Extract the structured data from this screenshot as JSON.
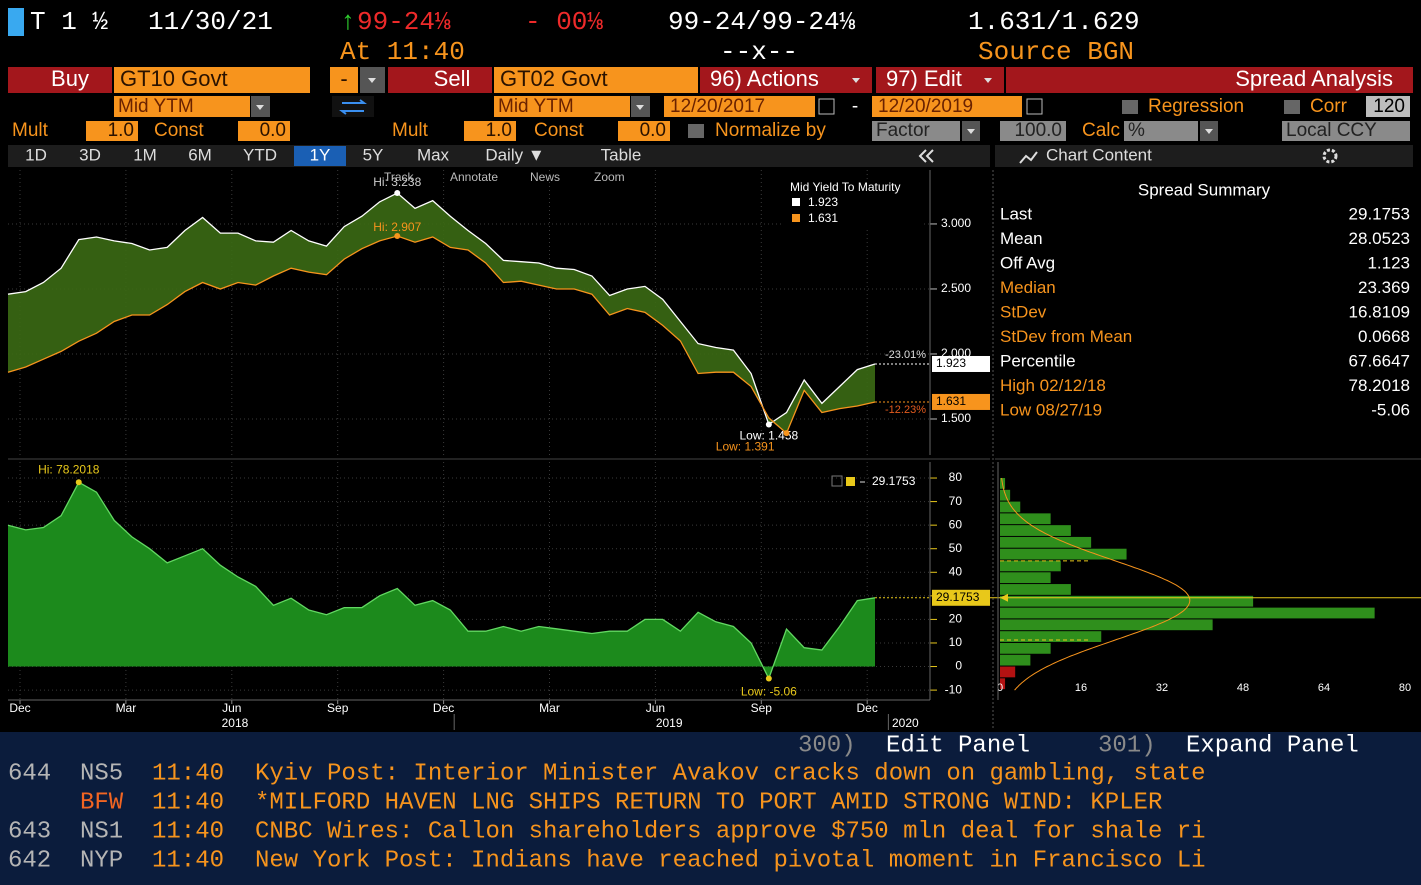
{
  "header": {
    "security": "T 1 ½",
    "maturity": "11/30/21",
    "price_arrow": "↑",
    "price": "99-24⅛",
    "change": "- 00⅛",
    "bid_ask": "99-24/99-24⅛",
    "yields": "1.631/1.629",
    "time": "At 11:40",
    "spread_mark": "--x--",
    "source": "Source BGN"
  },
  "toolbar": {
    "buy_label": "Buy",
    "buy_security": "GT10 Govt",
    "dash": "-",
    "sell_label": "Sell",
    "sell_security": "GT02 Govt",
    "actions": "96) Actions",
    "edit": "97) Edit",
    "title": "Spread Analysis",
    "buy_field": "Mid YTM",
    "sell_field": "Mid YTM",
    "start_date": "12/20/2017",
    "date_sep": "-",
    "end_date": "12/20/2019",
    "regression": "Regression",
    "corr": "Corr",
    "corr_window": "120",
    "buy_mult_label": "Mult",
    "buy_mult": "1.0",
    "buy_const_label": "Const",
    "buy_const": "0.0",
    "sell_mult_label": "Mult",
    "sell_mult": "1.0",
    "sell_const_label": "Const",
    "sell_const": "0.0",
    "normalize": "Normalize by",
    "factor": "Factor",
    "factor_value": "100.0",
    "calc": "Calc",
    "calc_value": "%",
    "currency": "Local CCY",
    "tabs": [
      "1D",
      "3D",
      "1M",
      "6M",
      "YTD",
      "1Y",
      "5Y",
      "Max"
    ],
    "active_tab": 5,
    "frequency": "Daily ▼",
    "table": "Table",
    "chart_content": "Chart Content",
    "tools": [
      "Track",
      "Annotate",
      "News",
      "Zoom"
    ]
  },
  "chart_data": [
    {
      "type": "area",
      "legend_title": "Mid Yield To Maturity",
      "legend_position": "upper right",
      "grid": true,
      "fill_color": "#3b6a14",
      "ylim": [
        1.223,
        3.415
      ],
      "yticks": [
        {
          "value": 1.5,
          "label": "1.500"
        },
        {
          "value": 2,
          "label": "2.000"
        },
        {
          "value": 2.5,
          "label": "2.500"
        },
        {
          "value": 3,
          "label": "3.000"
        }
      ],
      "series": [
        {
          "color": "#ffffff",
          "hi_label": "Hi: 3.238",
          "low_label": "Low: 1.458",
          "change_label": "-23.01%",
          "values": [
            2.46,
            2.48,
            2.55,
            2.66,
            2.88,
            2.9,
            2.87,
            2.85,
            2.8,
            2.82,
            2.95,
            3.05,
            2.93,
            2.93,
            2.87,
            2.86,
            2.95,
            2.87,
            2.83,
            2.98,
            3.06,
            3.17,
            3.238,
            3.12,
            3.18,
            3.06,
            2.95,
            2.85,
            2.72,
            2.71,
            2.7,
            2.66,
            2.65,
            2.6,
            2.45,
            2.5,
            2.52,
            2.42,
            2.25,
            2.08,
            2.05,
            2.03,
            1.85,
            1.458,
            1.55,
            1.8,
            1.62,
            1.75,
            1.88,
            1.923
          ]
        },
        {
          "color": "#f7941d",
          "hi_label": "Hi: 2.907",
          "low_label": "Low: 1.391",
          "change_label": "-12.23%",
          "values": [
            1.86,
            1.9,
            1.96,
            2.02,
            2.098,
            2.16,
            2.25,
            2.3,
            2.3,
            2.38,
            2.48,
            2.55,
            2.5,
            2.55,
            2.53,
            2.6,
            2.66,
            2.63,
            2.61,
            2.73,
            2.81,
            2.87,
            2.907,
            2.86,
            2.9,
            2.82,
            2.8,
            2.7,
            2.55,
            2.56,
            2.53,
            2.5,
            2.5,
            2.46,
            2.3,
            2.35,
            2.32,
            2.22,
            2.1,
            1.85,
            1.86,
            1.86,
            1.75,
            1.5086,
            1.391,
            1.72,
            1.55,
            1.58,
            1.6,
            1.631
          ]
        }
      ]
    },
    {
      "type": "area",
      "grid": true,
      "legend_position": "upper right",
      "ylim": [
        -14.2,
        86.8
      ],
      "yticks": [
        -10,
        0,
        10,
        20,
        30,
        40,
        50,
        60,
        70,
        80
      ],
      "xtick_labels": [
        "Dec",
        "Mar",
        "Jun",
        "Sep",
        "Dec",
        "Mar",
        "Jun",
        "Sep",
        "Dec"
      ],
      "year_labels": [
        "2018",
        "2019",
        "2020"
      ],
      "series": [
        {
          "color": "#1c8a1c",
          "line_color": "#62d862",
          "legend_color": "#e8c81a",
          "hi_label": "Hi: 78.2018",
          "low_label": "Low: -5.06",
          "values": [
            60,
            58,
            59,
            64,
            78.2018,
            74,
            62,
            55,
            50,
            44,
            47,
            50,
            43,
            38,
            34,
            26,
            29,
            24,
            22,
            25,
            25,
            30,
            33.1,
            26,
            28,
            24,
            15,
            15,
            17,
            15,
            17,
            16,
            15,
            14,
            15,
            15,
            20,
            20,
            15,
            23,
            19,
            17,
            10,
            -5.06,
            15.9,
            8,
            7,
            17,
            28,
            29.1753
          ]
        }
      ]
    },
    {
      "type": "histogram",
      "orientation": "horizontal",
      "color": "#2f8f1c",
      "negative_color": "#b31212",
      "curve_color": "#f7941d",
      "marker_color": "#e8c81a",
      "bins": [
        -10,
        -5,
        0,
        5,
        10,
        15,
        20,
        25,
        30,
        35,
        40,
        45,
        50,
        55,
        60,
        65,
        70,
        75,
        80
      ],
      "values": [
        1,
        3,
        6,
        10,
        20,
        42,
        74,
        50,
        14,
        10,
        12,
        25,
        18,
        14,
        10,
        4,
        2,
        1
      ],
      "xlim": [
        0,
        80
      ],
      "xticks": [
        0,
        16,
        32,
        48,
        64,
        80
      ],
      "ylim": [
        -14.2,
        86.8
      ]
    }
  ],
  "summary": {
    "title": "Spread Summary",
    "rows": [
      {
        "label": "Last",
        "value": 29.1753,
        "highlight": false
      },
      {
        "label": "Mean",
        "value": 28.0523,
        "highlight": false
      },
      {
        "label": "Off Avg",
        "value": 1.123,
        "highlight": false
      },
      {
        "label": "Median",
        "value": 23.369,
        "highlight": true
      },
      {
        "label": "StDev",
        "value": 16.8109,
        "highlight": true
      },
      {
        "label": "StDev from Mean",
        "value": 0.0668,
        "highlight": true
      },
      {
        "label": "Percentile",
        "value": 67.6647,
        "highlight": false
      },
      {
        "label": "High 02/12/18",
        "value": 78.2018,
        "highlight": true
      },
      {
        "label": "Low 08/27/19",
        "value": -5.06,
        "highlight": true
      }
    ]
  },
  "news": {
    "edit_panel_key": "300)",
    "edit_panel": "Edit Panel",
    "expand_panel_key": "301)",
    "expand_panel": "Expand Panel",
    "items": [
      {
        "id": "644",
        "source": "NS5",
        "highlight": false,
        "time": "11:40",
        "headline": "Kyiv Post: Interior Minister Avakov cracks down on gambling, state"
      },
      {
        "id": null,
        "source": "BFW",
        "highlight": true,
        "time": "11:40",
        "headline": "*MILFORD HAVEN LNG SHIPS RETURN TO PORT AMID STRONG WIND: KPLER"
      },
      {
        "id": "643",
        "source": "NS1",
        "highlight": false,
        "time": "11:40",
        "headline": "CNBC Wires: Callon shareholders approve $750 mln deal for shale ri"
      },
      {
        "id": "642",
        "source": "NYP",
        "highlight": false,
        "time": "11:40",
        "headline": "New York Post: Indians have reached pivotal moment in Francisco Li"
      }
    ]
  }
}
